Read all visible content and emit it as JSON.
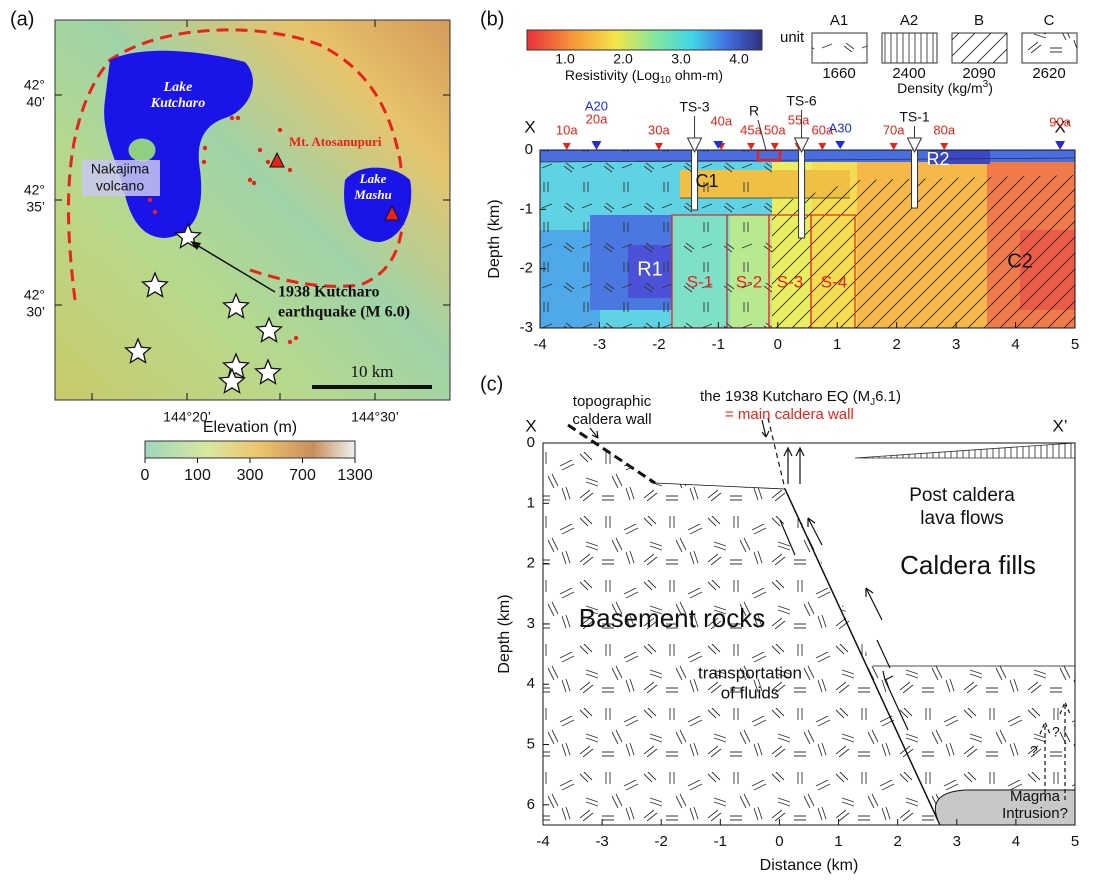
{
  "panel_a": {
    "label": "(a)",
    "lake_kutcharo": [
      "Lake",
      "Kutcharo"
    ],
    "mt_atosanupuri": "Mt. Atosanupuri",
    "nakajima": [
      "Nakajima",
      "volcano"
    ],
    "lake_mashu": [
      "Lake",
      "Mashu"
    ],
    "earthquake": [
      "1938 Kutcharo",
      "earthquake (M 6.0)"
    ],
    "scale_bar": "10 km",
    "lat_labels": [
      [
        "42°",
        "40’"
      ],
      [
        "42°",
        "35’"
      ],
      [
        "42°",
        "30’"
      ]
    ],
    "lon_labels": [
      "144°20’",
      "144°30’"
    ],
    "colorbar": {
      "title": "Elevation (m)",
      "ticks": [
        0,
        100,
        300,
        700,
        1300
      ]
    }
  },
  "panel_b": {
    "label": "(b)",
    "colorbar": {
      "title": [
        "Resistivity (Log",
        "10",
        " ohm-m)"
      ],
      "ticks": [
        "1.0",
        "2.0",
        "3.0",
        "4.0"
      ]
    },
    "unit_legend": {
      "title": "unit",
      "units": [
        "A1",
        "A2",
        "B",
        "C"
      ],
      "densities": [
        1660,
        2400,
        2090,
        2620
      ],
      "density_title": [
        "Density (kg/m",
        "3",
        ")"
      ]
    },
    "section": {
      "x_start": "X",
      "x_end": "X’",
      "stations_red": [
        "10a",
        "20a",
        "30a",
        "40a",
        "45a",
        "50a",
        "55a",
        "60a",
        "70a",
        "80a",
        "90a"
      ],
      "stations_blue": [
        "A20",
        "A30"
      ],
      "boreholes": [
        "TS-3",
        "TS-6",
        "TS-1"
      ],
      "r_label": "R",
      "regions": [
        "C1",
        "R2",
        "R1",
        "S-1",
        "S-2",
        "S-3",
        "S-4",
        "C2"
      ],
      "y_title": "Depth (km)",
      "xticks": [
        -4,
        -3,
        -2,
        -1,
        0,
        1,
        2,
        3,
        4,
        5
      ],
      "yticks": [
        0,
        -1,
        -2,
        -3
      ]
    }
  },
  "panel_c": {
    "label": "(c)",
    "topographic_wall": [
      "topographic",
      "caldera wall"
    ],
    "eq_label": [
      "the 1938 Kutcharo EQ (M",
      "J",
      "6.1)"
    ],
    "main_wall": "= main caldera wall",
    "x_start": "X",
    "x_end": "X’",
    "post_caldera": [
      "Post caldera",
      "lava flows"
    ],
    "caldera_fills": "Caldera fills",
    "basement": "Basement rocks",
    "fluids": [
      "transportation",
      "of fluids"
    ],
    "magma": [
      "Magma",
      "Intrusion?"
    ],
    "question_marks": [
      "?",
      "?"
    ],
    "x_title": "Distance (km)",
    "y_title": "Depth (km)",
    "xticks": [
      -4,
      -3,
      -2,
      -1,
      0,
      1,
      2,
      3,
      4,
      5
    ],
    "yticks": [
      0,
      1,
      2,
      3,
      4,
      5,
      6
    ]
  }
}
